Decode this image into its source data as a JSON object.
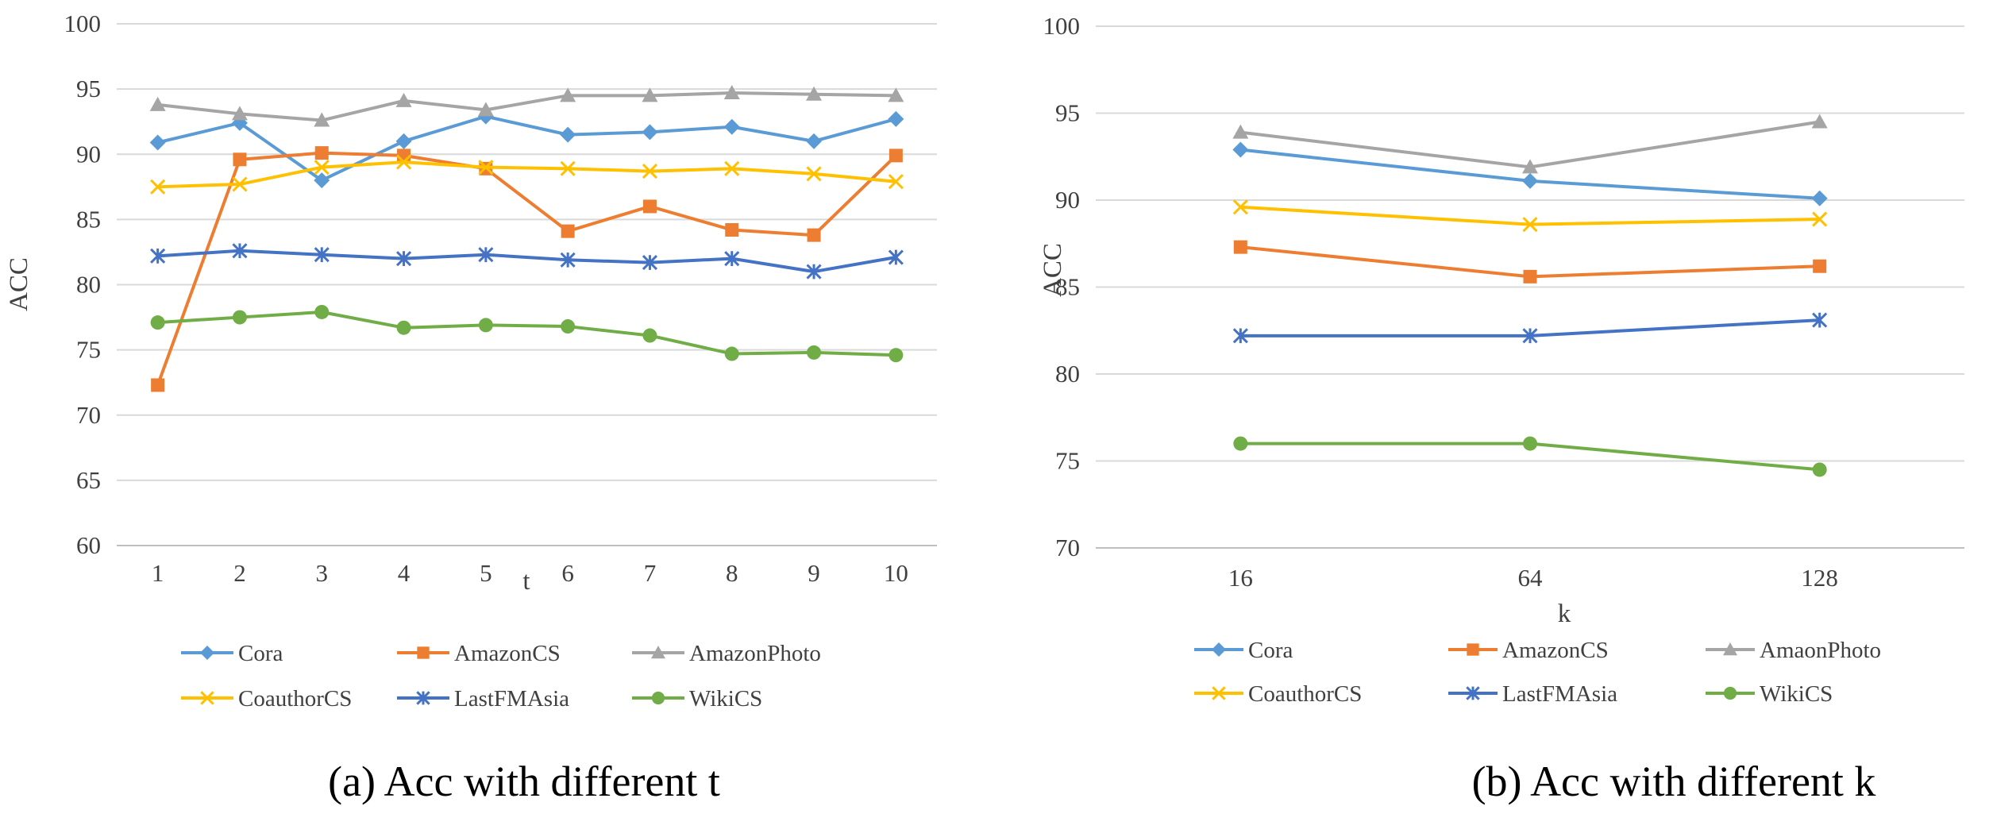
{
  "captions": {
    "a": "(a) Acc with different t",
    "b": "(b) Acc with different k"
  },
  "colors": {
    "Cora": "#5B9BD5",
    "AmazonCS": "#ED7D31",
    "AmazonPhoto": "#A5A5A5",
    "CoauthorCS": "#FFC000",
    "LastFMAsia": "#4472C4",
    "WikiCS": "#70AD47",
    "grid": "#D9D9D9"
  },
  "chart_data": [
    {
      "type": "line",
      "title": "(a) Acc with different t",
      "xlabel": "t",
      "ylabel": "ACC",
      "ylim": [
        60,
        100
      ],
      "yticks": [
        "60",
        "65",
        "70",
        "75",
        "80",
        "85",
        "90",
        "95",
        "100"
      ],
      "categories": [
        "1",
        "2",
        "3",
        "4",
        "5",
        "6",
        "7",
        "8",
        "9",
        "10"
      ],
      "grid": true,
      "legend_position": "bottom",
      "series": [
        {
          "name": "Cora",
          "marker": "diamond",
          "values": [
            90.9,
            92.4,
            88.0,
            91.0,
            92.9,
            91.5,
            91.7,
            92.1,
            91.0,
            92.7
          ]
        },
        {
          "name": "AmazonCS",
          "marker": "square",
          "values": [
            72.3,
            89.6,
            90.1,
            89.9,
            88.9,
            84.1,
            86.0,
            84.2,
            83.8,
            89.9
          ]
        },
        {
          "name": "AmazonPhoto",
          "marker": "triangle",
          "values": [
            93.8,
            93.1,
            92.6,
            94.1,
            93.4,
            94.5,
            94.5,
            94.7,
            94.6,
            94.5
          ]
        },
        {
          "name": "CoauthorCS",
          "marker": "x",
          "values": [
            87.5,
            87.7,
            89.0,
            89.4,
            89.0,
            88.9,
            88.7,
            88.9,
            88.5,
            87.9
          ]
        },
        {
          "name": "LastFMAsia",
          "marker": "star",
          "values": [
            82.2,
            82.6,
            82.3,
            82.0,
            82.3,
            81.9,
            81.7,
            82.0,
            81.0,
            82.1
          ]
        },
        {
          "name": "WikiCS",
          "marker": "circle",
          "values": [
            77.1,
            77.5,
            77.9,
            76.7,
            76.9,
            76.8,
            76.1,
            74.7,
            74.8,
            74.6
          ]
        }
      ]
    },
    {
      "type": "line",
      "title": "(b) Acc with different k",
      "xlabel": "k",
      "ylabel": "ACC",
      "ylim": [
        70,
        100
      ],
      "yticks": [
        "70",
        "75",
        "80",
        "85",
        "90",
        "95",
        "100"
      ],
      "categories": [
        "16",
        "64",
        "128"
      ],
      "grid": true,
      "legend_position": "bottom",
      "series": [
        {
          "name": "Cora",
          "marker": "diamond",
          "values": [
            92.9,
            91.1,
            90.1
          ]
        },
        {
          "name": "AmazonCS",
          "marker": "square",
          "values": [
            87.3,
            85.6,
            86.2
          ]
        },
        {
          "name": "AmaonPhoto",
          "marker": "triangle",
          "values": [
            93.9,
            91.9,
            94.5
          ]
        },
        {
          "name": "CoauthorCS",
          "marker": "x",
          "values": [
            89.6,
            88.6,
            88.9
          ]
        },
        {
          "name": "LastFMAsia",
          "marker": "star",
          "values": [
            82.2,
            82.2,
            83.1
          ]
        },
        {
          "name": "WikiCS",
          "marker": "circle",
          "values": [
            76.0,
            76.0,
            74.5
          ]
        }
      ]
    }
  ]
}
